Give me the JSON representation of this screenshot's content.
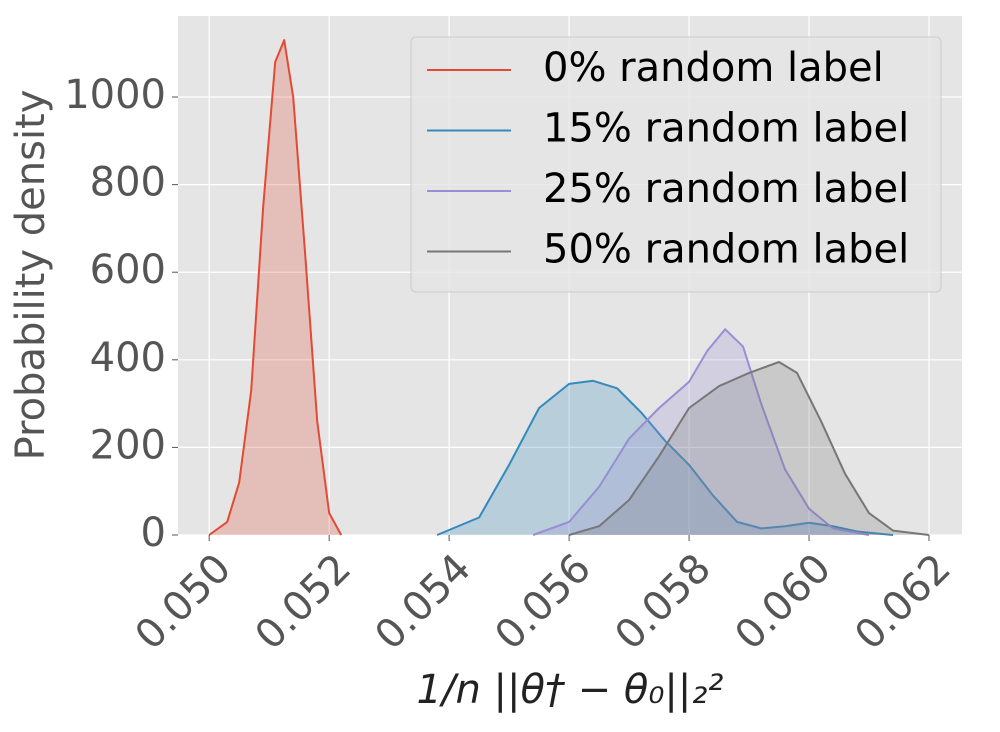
{
  "chart_data": {
    "type": "density",
    "xlabel": "1/n ||θ† − θ₀||₂²",
    "ylabel": "Probability density",
    "xlim": [
      0.04948,
      0.06255
    ],
    "ylim": [
      0,
      1185
    ],
    "xticks": [
      {
        "value": 0.05,
        "label": "0.050"
      },
      {
        "value": 0.052,
        "label": "0.052"
      },
      {
        "value": 0.054,
        "label": "0.054"
      },
      {
        "value": 0.056,
        "label": "0.056"
      },
      {
        "value": 0.058,
        "label": "0.058"
      },
      {
        "value": 0.06,
        "label": "0.060"
      },
      {
        "value": 0.062,
        "label": "0.062"
      }
    ],
    "yticks": [
      0,
      200,
      400,
      600,
      800,
      1000
    ],
    "grid": true,
    "legend": "upper right",
    "series": [
      {
        "name": "0% random label",
        "color": "#E24A33",
        "x": [
          0.05,
          0.0503,
          0.0505,
          0.0507,
          0.0509,
          0.0511,
          0.05125,
          0.0514,
          0.0516,
          0.0518,
          0.052,
          0.0522
        ],
        "values": [
          0,
          30,
          120,
          330,
          750,
          1080,
          1130,
          1000,
          640,
          260,
          50,
          0
        ]
      },
      {
        "name": "15% random label",
        "color": "#348ABD",
        "x": [
          0.0538,
          0.0545,
          0.055,
          0.0555,
          0.056,
          0.0564,
          0.0568,
          0.0572,
          0.0576,
          0.058,
          0.0584,
          0.0588,
          0.0592,
          0.0596,
          0.06,
          0.0604,
          0.0608,
          0.0614
        ],
        "values": [
          0,
          40,
          160,
          290,
          345,
          352,
          335,
          280,
          215,
          160,
          90,
          30,
          15,
          20,
          28,
          20,
          8,
          0
        ]
      },
      {
        "name": "25% random label",
        "color": "#988ED5",
        "x": [
          0.0554,
          0.056,
          0.0565,
          0.057,
          0.0575,
          0.058,
          0.0583,
          0.0586,
          0.0589,
          0.0592,
          0.0596,
          0.06,
          0.0604,
          0.061
        ],
        "values": [
          0,
          30,
          110,
          220,
          290,
          350,
          420,
          470,
          430,
          300,
          150,
          60,
          15,
          0
        ]
      },
      {
        "name": "50% random label",
        "color": "#777777",
        "x": [
          0.056,
          0.0565,
          0.057,
          0.0575,
          0.058,
          0.0585,
          0.059,
          0.0595,
          0.0598,
          0.0602,
          0.0606,
          0.061,
          0.0614,
          0.062
        ],
        "values": [
          0,
          20,
          80,
          180,
          290,
          340,
          370,
          395,
          370,
          260,
          140,
          50,
          10,
          0
        ]
      }
    ]
  }
}
